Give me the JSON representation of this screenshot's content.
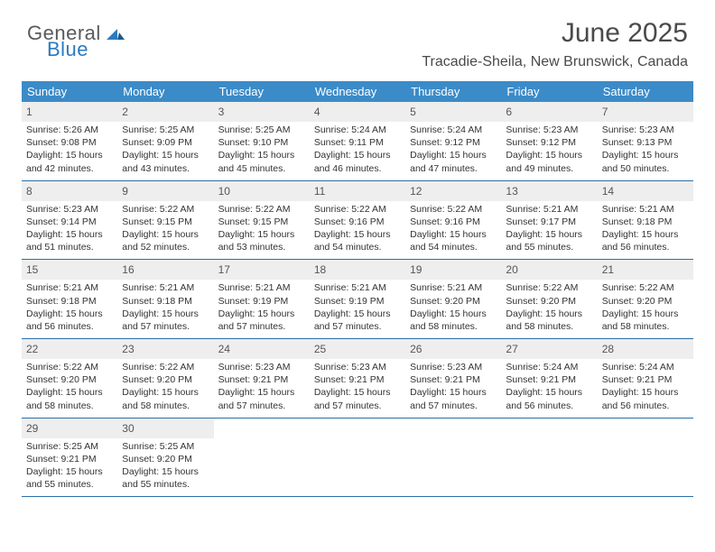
{
  "logo": {
    "line1": "General",
    "line2": "Blue"
  },
  "colors": {
    "header_bg": "#3b8bc8",
    "header_text": "#ffffff",
    "daynum_bg": "#eeeeee",
    "border": "#2b6fa8",
    "title": "#4a4a4a",
    "body_text": "#333333"
  },
  "title": "June 2025",
  "location": "Tracadie-Sheila, New Brunswick, Canada",
  "day_names": [
    "Sunday",
    "Monday",
    "Tuesday",
    "Wednesday",
    "Thursday",
    "Friday",
    "Saturday"
  ],
  "weeks": [
    [
      {
        "num": "1",
        "sunrise": "Sunrise: 5:26 AM",
        "sunset": "Sunset: 9:08 PM",
        "daylight": "Daylight: 15 hours and 42 minutes."
      },
      {
        "num": "2",
        "sunrise": "Sunrise: 5:25 AM",
        "sunset": "Sunset: 9:09 PM",
        "daylight": "Daylight: 15 hours and 43 minutes."
      },
      {
        "num": "3",
        "sunrise": "Sunrise: 5:25 AM",
        "sunset": "Sunset: 9:10 PM",
        "daylight": "Daylight: 15 hours and 45 minutes."
      },
      {
        "num": "4",
        "sunrise": "Sunrise: 5:24 AM",
        "sunset": "Sunset: 9:11 PM",
        "daylight": "Daylight: 15 hours and 46 minutes."
      },
      {
        "num": "5",
        "sunrise": "Sunrise: 5:24 AM",
        "sunset": "Sunset: 9:12 PM",
        "daylight": "Daylight: 15 hours and 47 minutes."
      },
      {
        "num": "6",
        "sunrise": "Sunrise: 5:23 AM",
        "sunset": "Sunset: 9:12 PM",
        "daylight": "Daylight: 15 hours and 49 minutes."
      },
      {
        "num": "7",
        "sunrise": "Sunrise: 5:23 AM",
        "sunset": "Sunset: 9:13 PM",
        "daylight": "Daylight: 15 hours and 50 minutes."
      }
    ],
    [
      {
        "num": "8",
        "sunrise": "Sunrise: 5:23 AM",
        "sunset": "Sunset: 9:14 PM",
        "daylight": "Daylight: 15 hours and 51 minutes."
      },
      {
        "num": "9",
        "sunrise": "Sunrise: 5:22 AM",
        "sunset": "Sunset: 9:15 PM",
        "daylight": "Daylight: 15 hours and 52 minutes."
      },
      {
        "num": "10",
        "sunrise": "Sunrise: 5:22 AM",
        "sunset": "Sunset: 9:15 PM",
        "daylight": "Daylight: 15 hours and 53 minutes."
      },
      {
        "num": "11",
        "sunrise": "Sunrise: 5:22 AM",
        "sunset": "Sunset: 9:16 PM",
        "daylight": "Daylight: 15 hours and 54 minutes."
      },
      {
        "num": "12",
        "sunrise": "Sunrise: 5:22 AM",
        "sunset": "Sunset: 9:16 PM",
        "daylight": "Daylight: 15 hours and 54 minutes."
      },
      {
        "num": "13",
        "sunrise": "Sunrise: 5:21 AM",
        "sunset": "Sunset: 9:17 PM",
        "daylight": "Daylight: 15 hours and 55 minutes."
      },
      {
        "num": "14",
        "sunrise": "Sunrise: 5:21 AM",
        "sunset": "Sunset: 9:18 PM",
        "daylight": "Daylight: 15 hours and 56 minutes."
      }
    ],
    [
      {
        "num": "15",
        "sunrise": "Sunrise: 5:21 AM",
        "sunset": "Sunset: 9:18 PM",
        "daylight": "Daylight: 15 hours and 56 minutes."
      },
      {
        "num": "16",
        "sunrise": "Sunrise: 5:21 AM",
        "sunset": "Sunset: 9:18 PM",
        "daylight": "Daylight: 15 hours and 57 minutes."
      },
      {
        "num": "17",
        "sunrise": "Sunrise: 5:21 AM",
        "sunset": "Sunset: 9:19 PM",
        "daylight": "Daylight: 15 hours and 57 minutes."
      },
      {
        "num": "18",
        "sunrise": "Sunrise: 5:21 AM",
        "sunset": "Sunset: 9:19 PM",
        "daylight": "Daylight: 15 hours and 57 minutes."
      },
      {
        "num": "19",
        "sunrise": "Sunrise: 5:21 AM",
        "sunset": "Sunset: 9:20 PM",
        "daylight": "Daylight: 15 hours and 58 minutes."
      },
      {
        "num": "20",
        "sunrise": "Sunrise: 5:22 AM",
        "sunset": "Sunset: 9:20 PM",
        "daylight": "Daylight: 15 hours and 58 minutes."
      },
      {
        "num": "21",
        "sunrise": "Sunrise: 5:22 AM",
        "sunset": "Sunset: 9:20 PM",
        "daylight": "Daylight: 15 hours and 58 minutes."
      }
    ],
    [
      {
        "num": "22",
        "sunrise": "Sunrise: 5:22 AM",
        "sunset": "Sunset: 9:20 PM",
        "daylight": "Daylight: 15 hours and 58 minutes."
      },
      {
        "num": "23",
        "sunrise": "Sunrise: 5:22 AM",
        "sunset": "Sunset: 9:20 PM",
        "daylight": "Daylight: 15 hours and 58 minutes."
      },
      {
        "num": "24",
        "sunrise": "Sunrise: 5:23 AM",
        "sunset": "Sunset: 9:21 PM",
        "daylight": "Daylight: 15 hours and 57 minutes."
      },
      {
        "num": "25",
        "sunrise": "Sunrise: 5:23 AM",
        "sunset": "Sunset: 9:21 PM",
        "daylight": "Daylight: 15 hours and 57 minutes."
      },
      {
        "num": "26",
        "sunrise": "Sunrise: 5:23 AM",
        "sunset": "Sunset: 9:21 PM",
        "daylight": "Daylight: 15 hours and 57 minutes."
      },
      {
        "num": "27",
        "sunrise": "Sunrise: 5:24 AM",
        "sunset": "Sunset: 9:21 PM",
        "daylight": "Daylight: 15 hours and 56 minutes."
      },
      {
        "num": "28",
        "sunrise": "Sunrise: 5:24 AM",
        "sunset": "Sunset: 9:21 PM",
        "daylight": "Daylight: 15 hours and 56 minutes."
      }
    ],
    [
      {
        "num": "29",
        "sunrise": "Sunrise: 5:25 AM",
        "sunset": "Sunset: 9:21 PM",
        "daylight": "Daylight: 15 hours and 55 minutes."
      },
      {
        "num": "30",
        "sunrise": "Sunrise: 5:25 AM",
        "sunset": "Sunset: 9:20 PM",
        "daylight": "Daylight: 15 hours and 55 minutes."
      },
      null,
      null,
      null,
      null,
      null
    ]
  ]
}
